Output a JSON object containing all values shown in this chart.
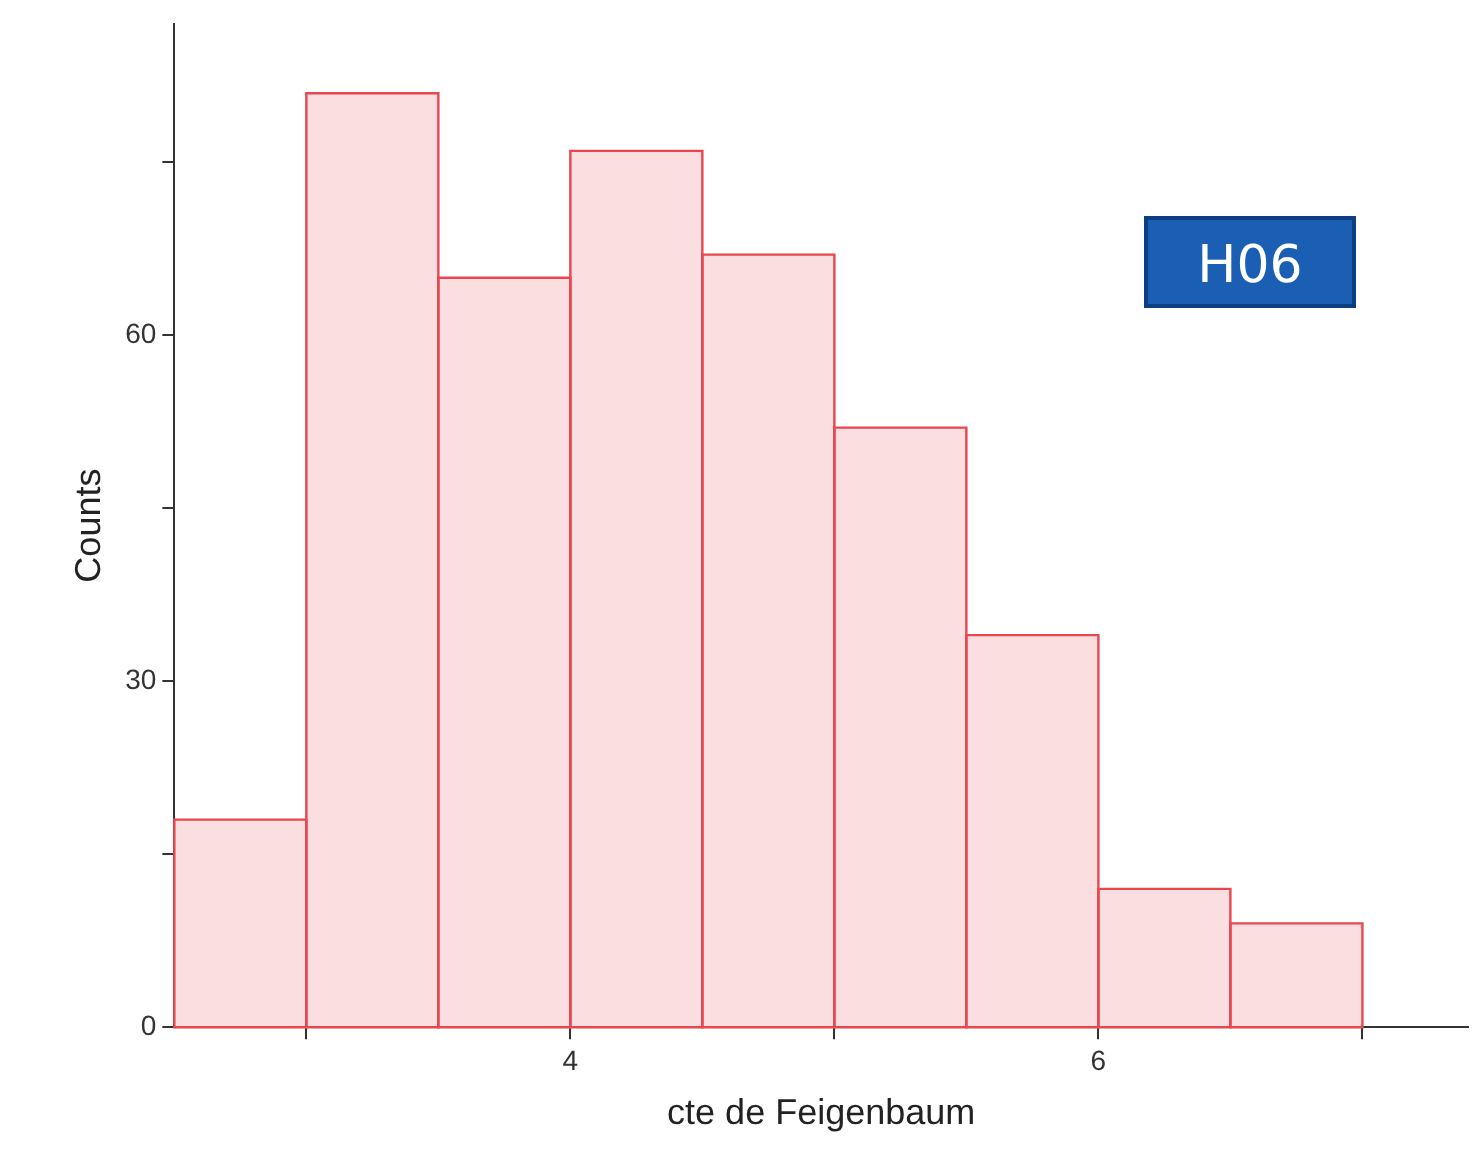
{
  "chart_data": {
    "type": "histogram",
    "xlabel": "cte de Feigenbaum",
    "ylabel": "Counts",
    "bins": [
      2.5,
      3,
      3.5,
      4,
      4.5,
      5,
      5.5,
      6,
      6.5,
      7
    ],
    "values": [
      18,
      81,
      65,
      76,
      67,
      52,
      34,
      12,
      9
    ],
    "color": "#e8474f",
    "xlim": [
      2.5,
      7.4
    ],
    "xticks": [
      {
        "value": 3,
        "label": null
      },
      4,
      {
        "value": 5,
        "label": null
      },
      6,
      {
        "value": 7,
        "label": null
      }
    ],
    "ylim": [
      0,
      87
    ],
    "yticks": [
      0,
      {
        "value": 15,
        "label": null
      },
      30,
      {
        "value": 45,
        "label": null
      },
      60,
      {
        "value": 75,
        "label": null
      }
    ],
    "grid": false,
    "legend": false,
    "annotations": [
      {
        "text": "H06"
      }
    ]
  }
}
